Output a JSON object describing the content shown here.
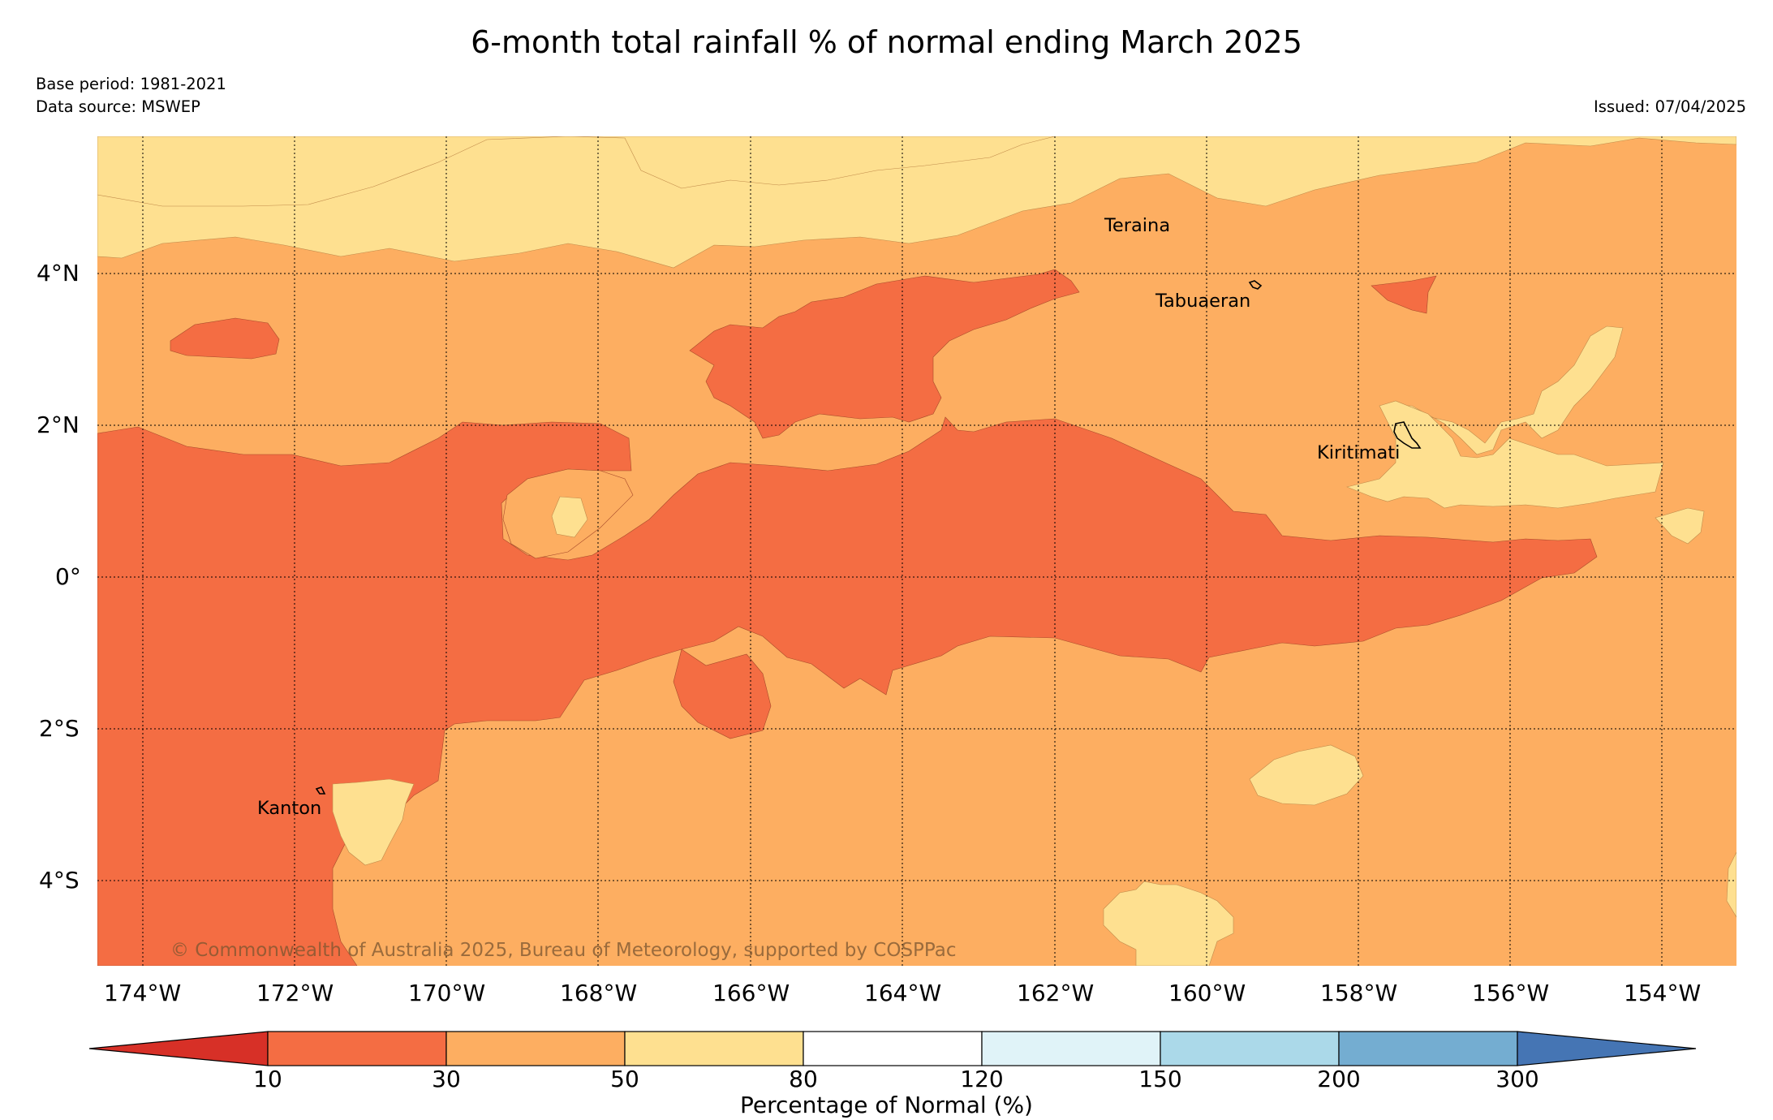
{
  "title": "6-month total rainfall % of normal ending March 2025",
  "base_period": "Base period: 1981-2021",
  "data_source": "Data source: MSWEP",
  "issued": "Issued: 07/04/2025",
  "copyright": "© Commonwealth of Australia 2025, Bureau of Meteorology, supported by COSPPac",
  "lon_ticks": [
    "174°W",
    "172°W",
    "170°W",
    "168°W",
    "166°W",
    "164°W",
    "162°W",
    "160°W",
    "158°W",
    "156°W",
    "154°W"
  ],
  "lat_ticks": [
    "4°N",
    "2°N",
    "0°",
    "2°S",
    "4°S"
  ],
  "places": {
    "teraina": "Teraina",
    "tabuaeran": "Tabuaeran",
    "kiritimati": "Kiritimati",
    "kanton": "Kanton"
  },
  "legend": {
    "label": "Percentage of Normal (%)",
    "boundaries": [
      "10",
      "30",
      "50",
      "80",
      "120",
      "150",
      "200",
      "300"
    ],
    "colors": [
      "#d73027",
      "#f46d43",
      "#fdae61",
      "#fee090",
      "#ffffff",
      "#e0f3f8",
      "#abd9e9",
      "#74add1",
      "#4575b4"
    ]
  }
}
